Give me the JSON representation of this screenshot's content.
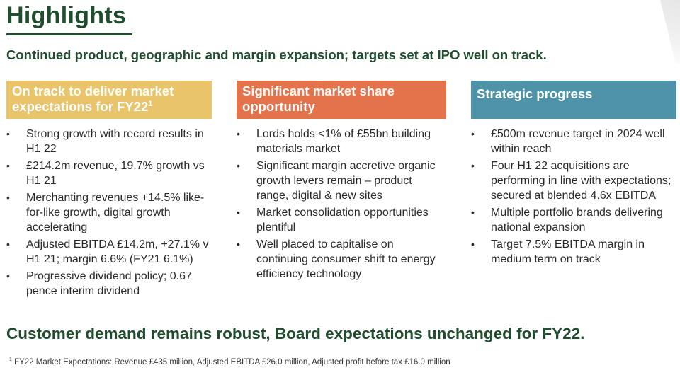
{
  "slide": {
    "title": "Highlights",
    "subtitle": "Continued product, geographic and margin expansion; targets set at IPO well on track.",
    "banner": "Customer demand remains robust, Board expectations unchanged for FY22.",
    "footnote_marker": "1",
    "footnote": "FY22 Market Expectations: Revenue £435 million, Adjusted EBITDA £26.0 million, Adjusted profit before tax £16.0 million"
  },
  "columns": [
    {
      "header": "On track to deliver market expectations for FY22",
      "header_marker": "1",
      "color": "#e9c46a",
      "bullets": [
        "Strong growth with record results in H1 22",
        "£214.2m revenue, 19.7% growth vs H1 21",
        "Merchanting revenues +14.5% like-for-like growth, digital growth accelerating",
        "Adjusted EBITDA £14.2m, +27.1% v H1 21; margin 6.6% (FY21 6.1%)",
        "Progressive dividend policy; 0.67 pence interim dividend"
      ]
    },
    {
      "header": "Significant market share opportunity",
      "color": "#e4724a",
      "bullets": [
        "Lords holds <1% of £55bn building materials market",
        "Significant margin accretive organic growth levers remain – product range, digital & new sites",
        "Market consolidation opportunities plentiful",
        "Well placed to capitalise on continuing consumer shift to energy efficiency technology"
      ]
    },
    {
      "header": "Strategic progress",
      "color": "#4f93a8",
      "bullets": [
        "£500m revenue target in 2024 well within reach",
        "Four H1 22 acquisitions are performing in line with expectations; secured at blended 4.6x EBITDA",
        "Multiple portfolio brands delivering national expansion",
        "Target 7.5% EBITDA margin in medium term on track"
      ]
    }
  ],
  "colors": {
    "brand_green": "#1f4d2e"
  },
  "bullet_glyph": "•"
}
